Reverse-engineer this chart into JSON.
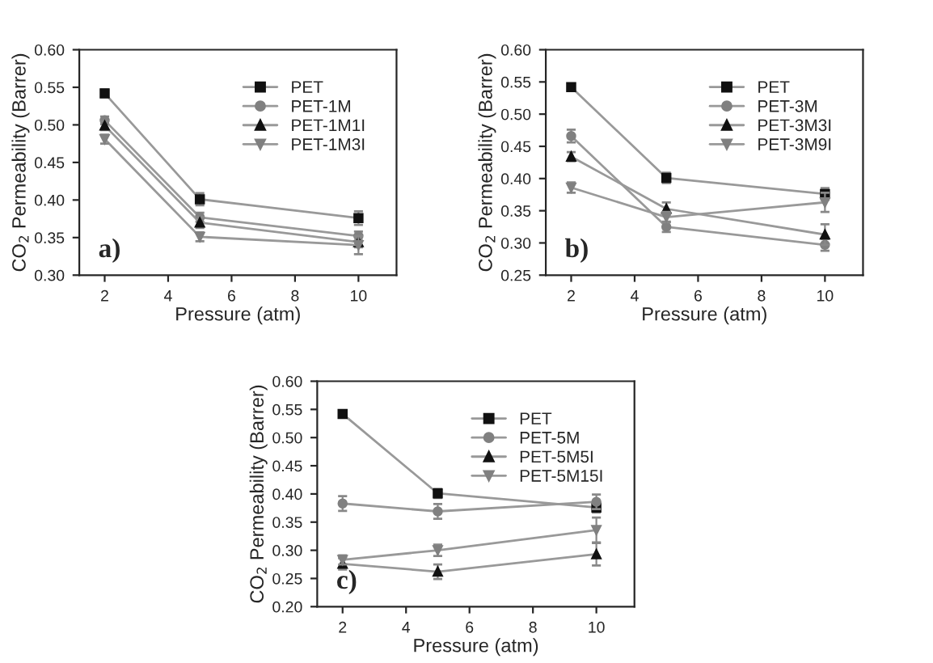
{
  "chart_data": [
    {
      "type": "line",
      "xlabel": "Pressure (atm)",
      "ylabel": "CO$_{2}$ Permeability (Barrer)",
      "x": [
        2,
        5,
        10
      ],
      "xlim": [
        1.2,
        11.2
      ],
      "xticks": [
        2,
        4,
        6,
        8,
        10
      ],
      "ylim": [
        0.3,
        0.6
      ],
      "yticks": [
        {
          "value": 0.3,
          "label": "0.30"
        },
        0.35,
        {
          "value": 0.4,
          "label": "0.40"
        },
        0.45,
        {
          "value": 0.5,
          "label": "0.50"
        },
        0.55,
        {
          "value": 0.6,
          "label": "0.60"
        }
      ],
      "legend": "top right",
      "line_style": "solid",
      "annotations": [
        "a)"
      ],
      "series": [
        {
          "name": "PET",
          "color": "#111111",
          "marker": "square",
          "values": [
            0.542,
            0.401,
            0.376
          ],
          "errors": [
            0.005,
            0.008,
            0.009
          ]
        },
        {
          "name": "PET-1M",
          "color": "#808080",
          "marker": "circle",
          "values": [
            0.506,
            0.377,
            0.352
          ],
          "errors": [
            0.005,
            0.006,
            0.006
          ]
        },
        {
          "name": "PET-1M1I",
          "color": "#111111",
          "marker": "triangle",
          "values": [
            0.499,
            0.37,
            0.344
          ],
          "errors": [
            0.006,
            0.007,
            0.007
          ]
        },
        {
          "name": "PET-1M3I",
          "color": "#808080",
          "marker": "triangle_down",
          "values": [
            0.481,
            0.351,
            0.34
          ],
          "errors": [
            0.006,
            0.006,
            0.012
          ]
        }
      ]
    },
    {
      "type": "line",
      "xlabel": "Pressure (atm)",
      "ylabel": "CO$_{2}$ Permeability (Barrer)",
      "x": [
        2,
        5,
        10
      ],
      "xlim": [
        1.2,
        11.2
      ],
      "xticks": [
        2,
        4,
        6,
        8,
        10
      ],
      "ylim": [
        0.25,
        0.6
      ],
      "yticks": [
        0.25,
        {
          "value": 0.3,
          "label": "0.30"
        },
        0.35,
        {
          "value": 0.4,
          "label": "0.40"
        },
        0.45,
        {
          "value": 0.5,
          "label": "0.50"
        },
        0.55,
        {
          "value": 0.6,
          "label": "0.60"
        }
      ],
      "legend": "top right",
      "line_style": "solid",
      "annotations": [
        "b)"
      ],
      "series": [
        {
          "name": "PET",
          "color": "#111111",
          "marker": "square",
          "values": [
            0.542,
            0.401,
            0.376
          ],
          "errors": [
            0.005,
            0.008,
            0.009
          ]
        },
        {
          "name": "PET-3M",
          "color": "#808080",
          "marker": "circle",
          "values": [
            0.466,
            0.325,
            0.297
          ],
          "errors": [
            0.01,
            0.008,
            0.009
          ]
        },
        {
          "name": "PET-3M3I",
          "color": "#111111",
          "marker": "triangle",
          "values": [
            0.434,
            0.353,
            0.313
          ],
          "errors": [
            0.007,
            0.01,
            0.016
          ]
        },
        {
          "name": "PET-3M9I",
          "color": "#808080",
          "marker": "triangle_down",
          "values": [
            0.386,
            0.34,
            0.363
          ],
          "errors": [
            0.008,
            0.008,
            0.015
          ]
        }
      ]
    },
    {
      "type": "line",
      "xlabel": "Pressure (atm)",
      "ylabel": "CO$_{2}$ Permeability (Barrer)",
      "x": [
        2,
        5,
        10
      ],
      "xlim": [
        1.2,
        11.2
      ],
      "xticks": [
        2,
        4,
        6,
        8,
        10
      ],
      "ylim": [
        0.2,
        0.6
      ],
      "yticks": [
        {
          "value": 0.2,
          "label": "0.20"
        },
        0.25,
        {
          "value": 0.3,
          "label": "0.30"
        },
        0.35,
        {
          "value": 0.4,
          "label": "0.40"
        },
        0.45,
        {
          "value": 0.5,
          "label": "0.50"
        },
        0.55,
        {
          "value": 0.6,
          "label": "0.60"
        }
      ],
      "legend": "top right",
      "line_style": "solid",
      "annotations": [
        "c)"
      ],
      "series": [
        {
          "name": "PET",
          "color": "#111111",
          "marker": "square",
          "values": [
            0.542,
            0.401,
            0.376
          ],
          "errors": [
            0.005,
            0.008,
            0.009
          ]
        },
        {
          "name": "PET-5M",
          "color": "#808080",
          "marker": "circle",
          "values": [
            0.383,
            0.369,
            0.386
          ],
          "errors": [
            0.013,
            0.013,
            0.013
          ]
        },
        {
          "name": "PET-5M5I",
          "color": "#111111",
          "marker": "triangle",
          "values": [
            0.276,
            0.262,
            0.293
          ],
          "errors": [
            0.01,
            0.013,
            0.02
          ]
        },
        {
          "name": "PET-5M15I",
          "color": "#808080",
          "marker": "triangle_down",
          "values": [
            0.283,
            0.3,
            0.336
          ],
          "errors": [
            0.008,
            0.01,
            0.022
          ]
        }
      ]
    }
  ]
}
